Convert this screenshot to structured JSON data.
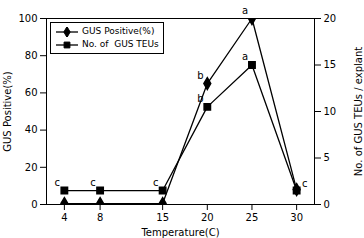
{
  "chart_data": {
    "type": "line",
    "x": [
      4,
      8,
      15,
      20,
      25,
      30
    ],
    "xlabel": "Temperature(C)",
    "ylabel": "GUS Positive(%)",
    "y2label": "No. of GUS TEUs / explant",
    "xlim": [
      2,
      32
    ],
    "xticks": [
      4,
      8,
      15,
      20,
      25,
      30
    ],
    "ylim": [
      0,
      100
    ],
    "yticks": [
      0,
      20,
      40,
      60,
      80,
      100
    ],
    "y2lim": [
      0,
      20
    ],
    "y2ticks": [
      0,
      5,
      10,
      15,
      20
    ],
    "grid": false,
    "legend": "upper left",
    "series": [
      {
        "name": "GUS Positive(%)",
        "color": "#000000",
        "marker": "diamond",
        "line_style": "solid",
        "values": [
          0.5,
          0.5,
          0.5,
          65,
          100,
          8
        ]
      },
      {
        "name": "No. of  GUS TEUs",
        "color": "#000000",
        "marker": "square",
        "line_style": "solid",
        "axis": "y2",
        "values": [
          1.5,
          1.5,
          1.5,
          10.5,
          15,
          1.5
        ]
      }
    ],
    "annotations": [
      {
        "text": "b",
        "x": 20,
        "y": 65
      },
      {
        "text": "a",
        "x": 25,
        "y": 100
      },
      {
        "text": "c",
        "x": 30,
        "y": 8
      },
      {
        "text": "c",
        "x": 4,
        "y": 1.5,
        "axis": "y2"
      },
      {
        "text": "c",
        "x": 8,
        "y": 1.5,
        "axis": "y2"
      },
      {
        "text": "c",
        "x": 15,
        "y": 1.5,
        "axis": "y2"
      },
      {
        "text": "b",
        "x": 20,
        "y": 10.5,
        "axis": "y2"
      },
      {
        "text": "a",
        "x": 25,
        "y": 15,
        "axis": "y2"
      }
    ]
  }
}
